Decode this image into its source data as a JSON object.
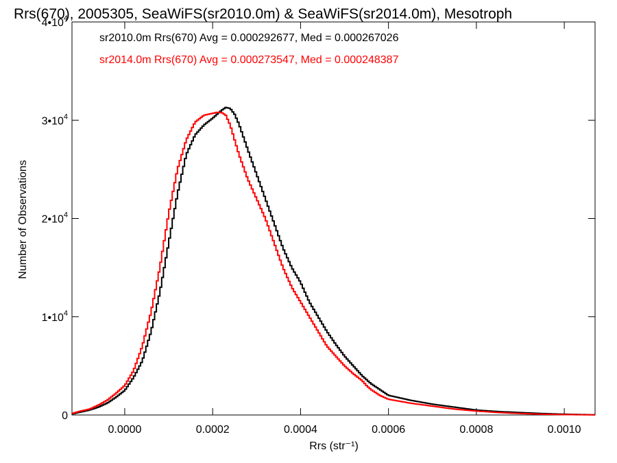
{
  "chart_data": {
    "type": "line",
    "title": "Rrs(670), 2005305, SeaWiFS(sr2010.0m) & SeaWiFS(sr2014.0m), Mesotroph",
    "xlabel": "Rrs (str⁻¹)",
    "ylabel": "Number of Observations",
    "xlim": [
      -0.00012,
      0.00107
    ],
    "ylim": [
      0,
      40000
    ],
    "x_ticks": [
      0.0,
      0.0002,
      0.0004,
      0.0006,
      0.0008,
      0.001
    ],
    "x_tick_labels": [
      "0.0000",
      "0.0002",
      "0.0004",
      "0.0006",
      "0.0008",
      "0.0010"
    ],
    "y_ticks": [
      0,
      10000,
      20000,
      30000,
      40000
    ],
    "y_tick_labels": [
      {
        "mantissa": "0",
        "exp": ""
      },
      {
        "mantissa": "1•10",
        "exp": "4"
      },
      {
        "mantissa": "2•10",
        "exp": "4"
      },
      {
        "mantissa": "3•10",
        "exp": "4"
      },
      {
        "mantissa": "4•10",
        "exp": "4"
      }
    ],
    "step_style": "histogram",
    "grid": false,
    "legend_position": "top-left",
    "series": [
      {
        "name": "sr2010.0m",
        "legend_text": "sr2010.0m Rrs(670) Avg = 0.000292677, Med = 0.000267026",
        "color": "#000000",
        "x": [
          -0.00012,
          -0.0001,
          -8e-05,
          -6e-05,
          -4e-05,
          -2e-05,
          0.0,
          2e-05,
          4e-05,
          6e-05,
          8e-05,
          0.0001,
          0.00012,
          0.00014,
          0.00016,
          0.00018,
          0.0002,
          0.00021,
          0.00022,
          0.00023,
          0.00024,
          0.00025,
          0.00026,
          0.00028,
          0.0003,
          0.00032,
          0.00034,
          0.00036,
          0.00038,
          0.0004,
          0.00042,
          0.00044,
          0.00046,
          0.00048,
          0.0005,
          0.00052,
          0.00054,
          0.00055,
          0.00056,
          0.00058,
          0.0006,
          0.00065,
          0.0007,
          0.00075,
          0.0008,
          0.00085,
          0.0009,
          0.00095,
          0.001,
          0.00107
        ],
        "y": [
          100,
          300,
          500,
          800,
          1200,
          1800,
          2500,
          3800,
          5500,
          8500,
          12500,
          17500,
          22500,
          26500,
          28500,
          29500,
          30200,
          30600,
          31000,
          31300,
          31200,
          30600,
          29600,
          27000,
          24500,
          22000,
          19500,
          17000,
          15000,
          13500,
          11500,
          10000,
          8500,
          7200,
          6000,
          5000,
          4000,
          3600,
          3200,
          2600,
          2000,
          1500,
          1100,
          800,
          500,
          350,
          250,
          150,
          80,
          20
        ]
      },
      {
        "name": "sr2014.0m",
        "legend_text": "sr2014.0m Rrs(670) Avg = 0.000273547, Med = 0.000248387",
        "color": "#ff0000",
        "x": [
          -0.00012,
          -0.0001,
          -8e-05,
          -6e-05,
          -4e-05,
          -2e-05,
          0.0,
          2e-05,
          4e-05,
          6e-05,
          8e-05,
          0.0001,
          0.00012,
          0.00014,
          0.00016,
          0.00018,
          0.0002,
          0.00021,
          0.00022,
          0.00023,
          0.00024,
          0.00025,
          0.00026,
          0.00028,
          0.0003,
          0.00032,
          0.00034,
          0.00036,
          0.00038,
          0.0004,
          0.00042,
          0.00044,
          0.00046,
          0.00048,
          0.0005,
          0.00052,
          0.00054,
          0.00055,
          0.00056,
          0.00058,
          0.0006,
          0.00065,
          0.0007,
          0.00075,
          0.0008,
          0.00085,
          0.0009,
          0.00095,
          0.001,
          0.00107
        ],
        "y": [
          150,
          400,
          600,
          1000,
          1500,
          2200,
          3000,
          4500,
          7000,
          10500,
          15000,
          20500,
          25000,
          28000,
          29800,
          30500,
          30700,
          30800,
          30800,
          30500,
          29500,
          28000,
          26500,
          24000,
          22000,
          20000,
          17500,
          15000,
          13000,
          11500,
          10000,
          8500,
          7000,
          6000,
          5000,
          4200,
          3500,
          3000,
          2600,
          2000,
          1600,
          1200,
          900,
          600,
          400,
          250,
          150,
          80,
          40,
          10
        ]
      }
    ]
  }
}
